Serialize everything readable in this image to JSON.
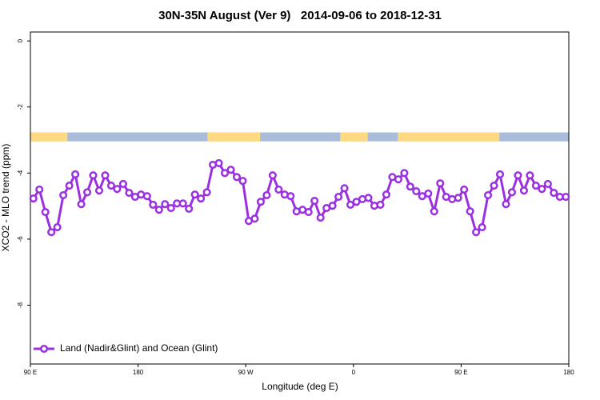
{
  "chart_data": {
    "type": "line",
    "title": "30N-35N August (Ver 9)   2014-09-06 to 2018-12-31",
    "xlabel": "Longitude (deg E)",
    "ylabel": "XCO2 - MLO trend (ppm)",
    "xlim": [
      90,
      540
    ],
    "ylim": [
      -9.78,
      0.27
    ],
    "xticks": [
      {
        "value": 90,
        "label": "90 E"
      },
      180,
      {
        "value": 270,
        "label": "90 W"
      },
      {
        "value": 360,
        "label": "0"
      },
      {
        "value": 450,
        "label": "90 E"
      },
      {
        "value": 540,
        "label": "180"
      }
    ],
    "yticks": [
      0,
      -2,
      -4,
      -6,
      -8
    ],
    "legend": "bottom-left",
    "land_ocean_strip": {
      "range": [
        -3.04,
        -2.77
      ],
      "ocean_color": "#a9bcd9",
      "land_color": "#fdd981",
      "land": [
        [
          90,
          121
        ],
        [
          238,
          282
        ],
        [
          349,
          372
        ],
        [
          397,
          482
        ]
      ]
    },
    "x": [
      92.5,
      97.5,
      102.5,
      107.5,
      112.5,
      117.5,
      122.5,
      127.5,
      132.5,
      137.5,
      142.5,
      147.5,
      152.5,
      157.5,
      162.5,
      167.5,
      172.5,
      177.5,
      182.5,
      187.5,
      192.5,
      197.5,
      202.5,
      207.5,
      212.5,
      217.5,
      222.5,
      227.5,
      232.5,
      237.5,
      242.5,
      247.5,
      252.5,
      257.5,
      262.5,
      267.5,
      272.5,
      277.5,
      282.5,
      287.5,
      292.5,
      297.5,
      302.5,
      307.5,
      312.5,
      317.5,
      322.5,
      327.5,
      332.5,
      337.5,
      342.5,
      347.5,
      352.5,
      357.5,
      362.5,
      367.5,
      372.5,
      377.5,
      382.5,
      387.5,
      392.5,
      397.5,
      402.5,
      407.5,
      412.5,
      417.5,
      422.5,
      427.5,
      432.5,
      437.5,
      442.5,
      447.5,
      452.5,
      457.5,
      462.5,
      467.5,
      472.5,
      477.5,
      482.5,
      487.5,
      492.5,
      497.5,
      502.5,
      507.5,
      512.5,
      517.5,
      522.5,
      527.5,
      532.5,
      537.5
    ],
    "series": [
      {
        "name": "Land (Nadir&Glint) and Ocean (Glint)",
        "color": "#9b30e0",
        "values": [
          -4.77,
          -4.5,
          -5.18,
          -5.79,
          -5.64,
          -4.67,
          -4.38,
          -4.04,
          -4.94,
          -4.58,
          -4.07,
          -4.53,
          -4.07,
          -4.38,
          -4.48,
          -4.33,
          -4.6,
          -4.72,
          -4.65,
          -4.7,
          -4.96,
          -5.11,
          -4.94,
          -5.06,
          -4.92,
          -4.92,
          -5.08,
          -4.65,
          -4.77,
          -4.58,
          -3.75,
          -3.7,
          -4.0,
          -3.9,
          -4.12,
          -4.24,
          -5.45,
          -5.38,
          -4.87,
          -4.67,
          -4.07,
          -4.5,
          -4.65,
          -4.7,
          -5.16,
          -5.11,
          -5.18,
          -4.84,
          -5.35,
          -5.06,
          -4.99,
          -4.72,
          -4.46,
          -4.96,
          -4.87,
          -4.79,
          -4.75,
          -4.99,
          -4.96,
          -4.65,
          -4.12,
          -4.19,
          -4.0,
          -4.41,
          -4.55,
          -4.7,
          -4.62,
          -5.16,
          -4.31,
          -4.72,
          -4.79,
          -4.75,
          -4.5,
          -5.16,
          -5.79,
          -5.64,
          -4.67,
          -4.38,
          -4.04,
          -4.94,
          -4.58,
          -4.07,
          -4.53,
          -4.07,
          -4.38,
          -4.48,
          -4.33,
          -4.6,
          -4.72,
          -4.72
        ]
      }
    ]
  }
}
